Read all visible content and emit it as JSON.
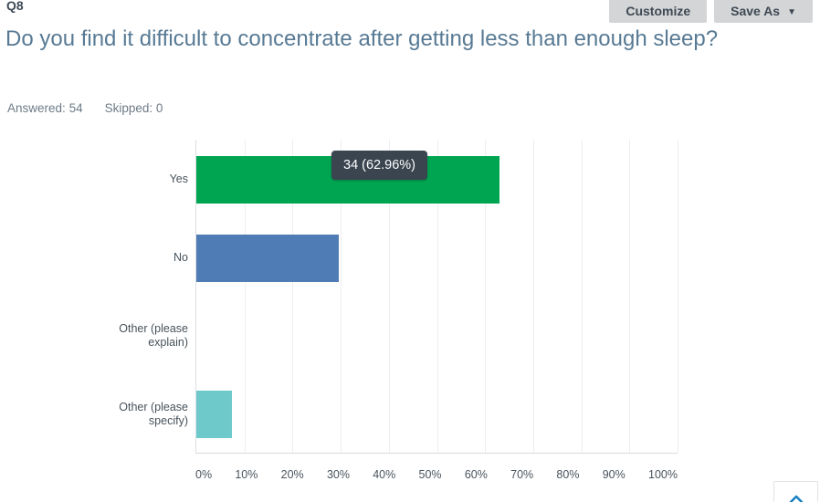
{
  "header": {
    "question_number": "Q8",
    "title": "Do you find it difficult to concentrate after getting less than enough sleep?",
    "answered_label": "Answered:",
    "answered_count": "54",
    "skipped_label": "Skipped:",
    "skipped_count": "0"
  },
  "toolbar": {
    "customize_label": "Customize",
    "save_as_label": "Save As",
    "save_as_caret_icon": "▼"
  },
  "chart_data": {
    "type": "bar",
    "orientation": "horizontal",
    "categories": [
      "Yes",
      "No",
      "Other (please explain)",
      "Other (please specify)"
    ],
    "values_percent": [
      62.96,
      29.63,
      0,
      7.41
    ],
    "x_tick_labels": [
      "0%",
      "10%",
      "20%",
      "30%",
      "40%",
      "50%",
      "60%",
      "70%",
      "80%",
      "90%",
      "100%"
    ],
    "xlim": [
      0,
      100
    ],
    "grid": true,
    "legend": false,
    "bar_colors": [
      "#00a551",
      "#4f7cb4",
      null,
      "#6ec9cb"
    ],
    "tooltip": {
      "text": "34 (62.96%)",
      "category": "Yes",
      "bg_color": "#3a4550",
      "text_color": "#ffffff"
    }
  },
  "colors": {
    "title_text": "#587a94",
    "button_bg": "#d4d5d6",
    "button_text": "#3d4954",
    "axis_line": "#dcdfe1",
    "gridline": "#edeef0",
    "scroll_chevron": "#1781c2"
  },
  "scroll_top": {
    "icon": "chevron-up"
  }
}
